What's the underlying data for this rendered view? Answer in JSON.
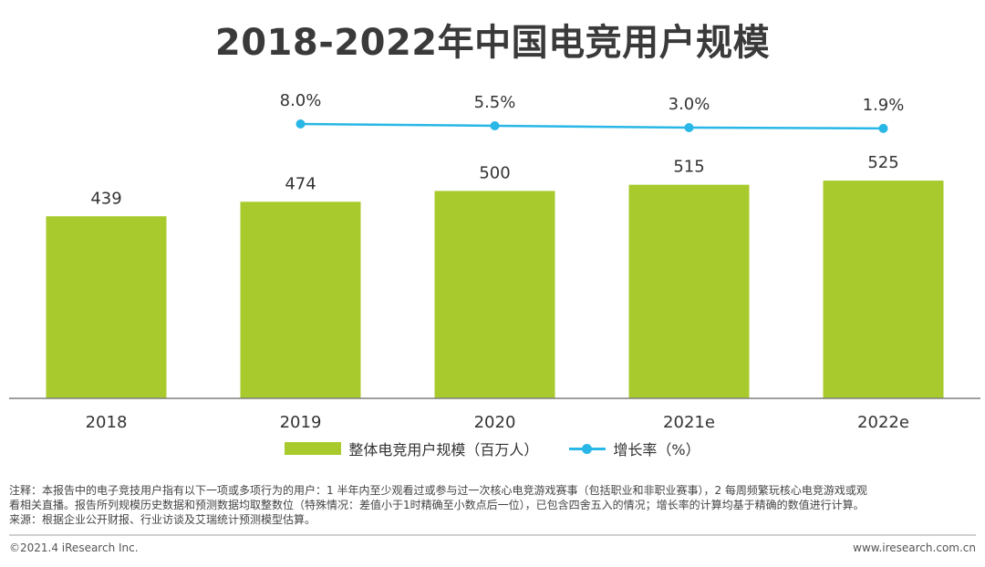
{
  "title": "2018-2022年中国电竞用户规模",
  "chart_data": {
    "type": "bar",
    "categories": [
      "2018",
      "2019",
      "2020",
      "2021e",
      "2022e"
    ],
    "series": [
      {
        "name": "整体电竞用户规模（百万人）",
        "type": "bar",
        "values": [
          439,
          474,
          500,
          515,
          525
        ],
        "labels": [
          "439",
          "474",
          "500",
          "515",
          "525"
        ]
      },
      {
        "name": "增长率（%）",
        "type": "line",
        "x": [
          "2019",
          "2020",
          "2021e",
          "2022e"
        ],
        "values": [
          8.0,
          5.5,
          3.0,
          1.9
        ],
        "labels": [
          "8.0%",
          "5.5%",
          "3.0%",
          "1.9%"
        ]
      }
    ],
    "legend_position": "bottom-center",
    "grid": false
  },
  "colors": {
    "bar": "#a8ca2c",
    "line": "#28b7e6",
    "axis": "#7f7f7f"
  },
  "notes": {
    "line1": "注释：本报告中的电子竞技用户指有以下一项或多项行为的用户：1 半年内至少观看过或参与过一次核心电竞游戏赛事（包括职业和非职业赛事），2 每周频繁玩核心电竞游戏或观",
    "line2": "看相关直播。报告所列规模历史数据和预测数据均取整数位（特殊情况：差值小于1时精确至小数点后一位），已包含四舍五入的情况；增长率的计算均基于精确的数值进行计算。",
    "line3": "来源：根据企业公开财报、行业访谈及艾瑞统计预测模型估算。"
  },
  "footer": {
    "copyright": "©2021.4 iResearch Inc.",
    "website": "www.iresearch.com.cn"
  }
}
